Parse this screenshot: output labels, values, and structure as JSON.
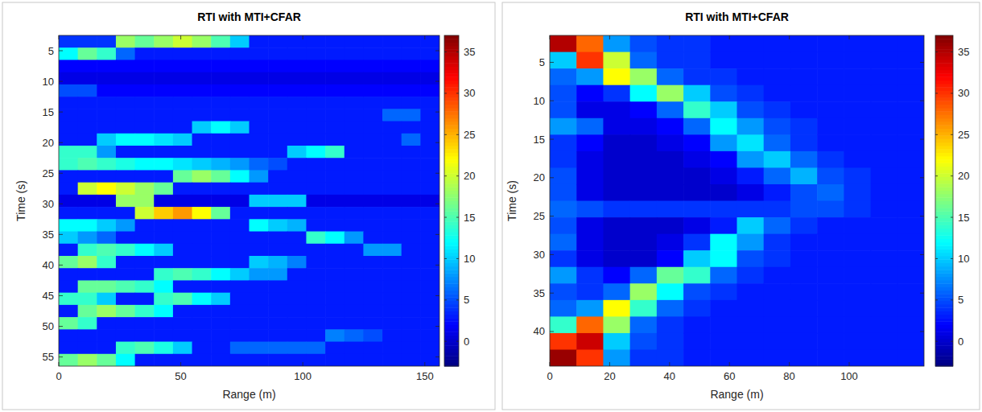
{
  "chart_data": [
    {
      "type": "heatmap",
      "title": "RTI with MTI+CFAR",
      "xlabel": "Range (m)",
      "ylabel": "Time (s)",
      "xlim": [
        0,
        156
      ],
      "xticks": [
        0,
        50,
        100,
        150
      ],
      "ylim": [
        2.5,
        56.5
      ],
      "yticks": [
        5,
        10,
        15,
        20,
        25,
        30,
        35,
        40,
        45,
        50,
        55
      ],
      "x": [
        3.9,
        11.7,
        19.5,
        27.3,
        35.1,
        42.9,
        50.7,
        58.5,
        66.3,
        74.1,
        81.9,
        89.7,
        97.5,
        105.3,
        113.1,
        120.9,
        128.7,
        136.5,
        144.3,
        152.1
      ],
      "y": [
        3.5,
        5.5,
        7.5,
        9.5,
        11.5,
        13.5,
        15.5,
        17.5,
        19.5,
        21.5,
        23.5,
        25.5,
        27.5,
        29.5,
        31.5,
        33.5,
        35.5,
        37.5,
        39.5,
        41.5,
        43.5,
        45.5,
        47.5,
        49.5,
        51.5,
        53.5,
        55.5
      ],
      "cells": [
        [
          4,
          4,
          4,
          18,
          16,
          18,
          20,
          18,
          15,
          10,
          3,
          3,
          3,
          3,
          3,
          3,
          3,
          3,
          3,
          3
        ],
        [
          12,
          16,
          14,
          6,
          3,
          3,
          3,
          3,
          3,
          3,
          3,
          3,
          3,
          3,
          3,
          3,
          3,
          3,
          3,
          3
        ],
        [
          2,
          2,
          2,
          2,
          2,
          2,
          2,
          2,
          2,
          2,
          2,
          2,
          2,
          2,
          2,
          2,
          2,
          2,
          2,
          2
        ],
        [
          1,
          1,
          1,
          1,
          1,
          1,
          1,
          1,
          1,
          1,
          1,
          1,
          1,
          1,
          1,
          1,
          1,
          1,
          1,
          1
        ],
        [
          5,
          5,
          2,
          2,
          2,
          2,
          2,
          2,
          2,
          2,
          2,
          2,
          2,
          2,
          2,
          2,
          2,
          2,
          2,
          2
        ],
        [
          3,
          3,
          3,
          3,
          3,
          3,
          3,
          3,
          3,
          3,
          3,
          3,
          3,
          3,
          3,
          3,
          3,
          3,
          3,
          3
        ],
        [
          3,
          3,
          3,
          3,
          3,
          3,
          3,
          3,
          3,
          3,
          3,
          3,
          3,
          3,
          3,
          3,
          3,
          6,
          6,
          3
        ],
        [
          3,
          3,
          3,
          3,
          3,
          3,
          3,
          10,
          12,
          10,
          3,
          3,
          3,
          3,
          3,
          3,
          3,
          3,
          3,
          3
        ],
        [
          3,
          3,
          10,
          12,
          12,
          11,
          10,
          3,
          3,
          3,
          3,
          3,
          3,
          3,
          3,
          3,
          3,
          3,
          6,
          3
        ],
        [
          14,
          14,
          8,
          3,
          3,
          3,
          3,
          3,
          3,
          3,
          3,
          3,
          10,
          12,
          14,
          3,
          3,
          3,
          3,
          3
        ],
        [
          14,
          15,
          14,
          13,
          12,
          12,
          11,
          10,
          9,
          8,
          6,
          5,
          3,
          3,
          3,
          3,
          3,
          3,
          3,
          3
        ],
        [
          3,
          3,
          3,
          3,
          3,
          3,
          16,
          18,
          16,
          12,
          8,
          3,
          3,
          3,
          3,
          3,
          3,
          3,
          3,
          3
        ],
        [
          3,
          20,
          22,
          20,
          18,
          16,
          3,
          3,
          3,
          3,
          3,
          3,
          3,
          3,
          3,
          3,
          3,
          3,
          3,
          3
        ],
        [
          1,
          1,
          1,
          18,
          18,
          1,
          1,
          1,
          1,
          1,
          10,
          10,
          10,
          1,
          1,
          1,
          1,
          1,
          1,
          1
        ],
        [
          3,
          3,
          3,
          3,
          20,
          24,
          26,
          22,
          16,
          3,
          3,
          3,
          3,
          3,
          3,
          3,
          3,
          3,
          3,
          3
        ],
        [
          12,
          12,
          10,
          8,
          3,
          3,
          3,
          3,
          3,
          3,
          12,
          10,
          9,
          3,
          3,
          3,
          3,
          3,
          3,
          3
        ],
        [
          10,
          8,
          6,
          3,
          3,
          3,
          3,
          3,
          3,
          3,
          3,
          3,
          3,
          14,
          12,
          8,
          3,
          3,
          3,
          3
        ],
        [
          3,
          14,
          15,
          14,
          12,
          10,
          3,
          3,
          3,
          3,
          3,
          3,
          3,
          3,
          3,
          3,
          8,
          8,
          3,
          3
        ],
        [
          16,
          18,
          14,
          3,
          3,
          3,
          3,
          3,
          3,
          3,
          10,
          9,
          7,
          3,
          3,
          3,
          3,
          3,
          3,
          3
        ],
        [
          3,
          3,
          3,
          3,
          3,
          14,
          15,
          14,
          12,
          10,
          8,
          8,
          3,
          3,
          3,
          3,
          3,
          3,
          3,
          3
        ],
        [
          3,
          16,
          16,
          15,
          14,
          12,
          3,
          3,
          3,
          3,
          3,
          3,
          3,
          3,
          3,
          3,
          3,
          3,
          3,
          3
        ],
        [
          14,
          14,
          10,
          3,
          3,
          14,
          15,
          12,
          10,
          3,
          3,
          3,
          3,
          3,
          3,
          3,
          3,
          3,
          3,
          3
        ],
        [
          3,
          16,
          18,
          16,
          14,
          12,
          3,
          3,
          3,
          3,
          3,
          3,
          3,
          3,
          3,
          3,
          3,
          3,
          3,
          3
        ],
        [
          16,
          14,
          3,
          3,
          3,
          3,
          3,
          3,
          3,
          3,
          3,
          3,
          3,
          3,
          3,
          3,
          3,
          3,
          3,
          3
        ],
        [
          3,
          3,
          3,
          3,
          3,
          3,
          3,
          3,
          3,
          3,
          3,
          3,
          3,
          3,
          7,
          6,
          5,
          3,
          3,
          3
        ],
        [
          3,
          3,
          3,
          14,
          15,
          13,
          10,
          3,
          3,
          6,
          6,
          6,
          6,
          6,
          3,
          3,
          3,
          3,
          3,
          3
        ],
        [
          16,
          18,
          16,
          12,
          3,
          3,
          3,
          3,
          3,
          3,
          3,
          3,
          3,
          3,
          3,
          3,
          3,
          3,
          3,
          3
        ]
      ],
      "colorbar_range": [
        -3,
        37
      ],
      "colorbar_ticks": [
        0,
        5,
        10,
        15,
        20,
        25,
        30,
        35
      ]
    },
    {
      "type": "heatmap",
      "title": "RTI with MTI+CFAR",
      "xlabel": "Range (m)",
      "ylabel": "Time (s)",
      "xlim": [
        0,
        125
      ],
      "xticks": [
        0,
        20,
        40,
        60,
        80,
        100
      ],
      "ylim": [
        1.5,
        44.5
      ],
      "yticks": [
        5,
        10,
        15,
        20,
        25,
        30,
        35,
        40
      ],
      "x": [
        4.46,
        13.39,
        22.32,
        31.25,
        40.18,
        49.11,
        58.04,
        66.96,
        75.89,
        84.82,
        93.75,
        102.68,
        111.61,
        120.54
      ],
      "y": [
        2.58,
        4.73,
        6.88,
        9.03,
        11.18,
        13.33,
        15.48,
        17.63,
        19.78,
        21.93,
        24.08,
        26.23,
        28.38,
        30.53,
        32.68,
        34.83,
        36.98,
        39.13,
        41.28,
        43.43
      ],
      "cells": [
        [
          35,
          28,
          8,
          5,
          4,
          4,
          3,
          3,
          3,
          3,
          3,
          3,
          3,
          3
        ],
        [
          10,
          30,
          20,
          6,
          4,
          4,
          3,
          3,
          3,
          3,
          3,
          3,
          3,
          3
        ],
        [
          6,
          8,
          22,
          18,
          6,
          4,
          4,
          3,
          3,
          3,
          3,
          3,
          3,
          3
        ],
        [
          5,
          2,
          4,
          12,
          18,
          10,
          5,
          4,
          3,
          3,
          3,
          3,
          3,
          3
        ],
        [
          5,
          1,
          1,
          2,
          6,
          14,
          10,
          5,
          4,
          3,
          3,
          3,
          3,
          3
        ],
        [
          8,
          6,
          1,
          1,
          2,
          6,
          12,
          8,
          5,
          4,
          3,
          3,
          3,
          3
        ],
        [
          4,
          2,
          0,
          0,
          1,
          2,
          8,
          11,
          6,
          4,
          3,
          3,
          3,
          3
        ],
        [
          4,
          1,
          0,
          0,
          0,
          1,
          2,
          8,
          10,
          6,
          4,
          3,
          3,
          3
        ],
        [
          5,
          1,
          0,
          0,
          0,
          0,
          1,
          3,
          6,
          9,
          5,
          4,
          3,
          3
        ],
        [
          5,
          1,
          0,
          0,
          0,
          0,
          0,
          1,
          3,
          5,
          6,
          4,
          3,
          3
        ],
        [
          6,
          5,
          4,
          4,
          4,
          4,
          4,
          4,
          4,
          5,
          5,
          4,
          3,
          3
        ],
        [
          5,
          1,
          0,
          0,
          0,
          1,
          3,
          10,
          6,
          4,
          3,
          3,
          3,
          3
        ],
        [
          6,
          1,
          0,
          0,
          1,
          4,
          12,
          8,
          4,
          3,
          3,
          3,
          3,
          3
        ],
        [
          4,
          1,
          0,
          0,
          2,
          10,
          12,
          5,
          4,
          3,
          3,
          3,
          3,
          3
        ],
        [
          8,
          4,
          2,
          6,
          16,
          14,
          6,
          4,
          3,
          3,
          3,
          3,
          3,
          3
        ],
        [
          5,
          4,
          6,
          18,
          12,
          5,
          4,
          3,
          3,
          3,
          3,
          3,
          3,
          3
        ],
        [
          6,
          8,
          22,
          14,
          6,
          4,
          3,
          3,
          3,
          3,
          3,
          3,
          3,
          3
        ],
        [
          14,
          28,
          18,
          6,
          4,
          3,
          3,
          3,
          3,
          3,
          3,
          3,
          3,
          3
        ],
        [
          30,
          34,
          10,
          5,
          4,
          3,
          3,
          3,
          3,
          3,
          3,
          3,
          3,
          3
        ],
        [
          36,
          30,
          8,
          4,
          4,
          3,
          3,
          3,
          3,
          3,
          3,
          3,
          3,
          3
        ]
      ],
      "colorbar_range": [
        -3,
        37
      ],
      "colorbar_ticks": [
        0,
        5,
        10,
        15,
        20,
        25,
        30,
        35
      ]
    }
  ]
}
